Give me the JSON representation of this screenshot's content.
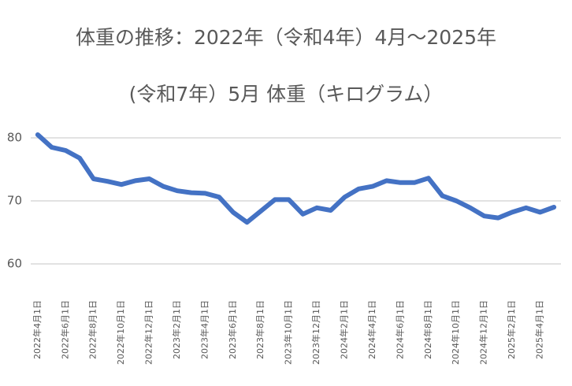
{
  "chart_data": {
    "type": "line",
    "title": "体重の推移：2022年（令和4年）4月～2025年(令和7年）5月 体重（キログラム）",
    "categories": [
      "2022年4月1日",
      null,
      "2022年6月1日",
      null,
      "2022年8月1日",
      null,
      "2022年10月1日",
      null,
      "2022年12月1日",
      null,
      "2023年2月1日",
      null,
      "2023年4月1日",
      null,
      "2023年6月1日",
      null,
      "2023年8月1日",
      null,
      "2023年10月1日",
      null,
      "2023年12月1日",
      null,
      "2024年2月1日",
      null,
      "2024年4月1日",
      null,
      "2024年6月1日",
      null,
      "2024年8月1日",
      null,
      "2024年10月1日",
      null,
      "2024年12月1日",
      null,
      "2025年2月1日",
      null,
      "2025年4月1日",
      null
    ],
    "series": [
      {
        "name": "体重",
        "color": "#4472c4",
        "values": [
          80.5,
          78.5,
          78,
          76.8,
          73.5,
          73.1,
          72.6,
          73.2,
          73.5,
          72.3,
          71.6,
          71.3,
          71.2,
          70.6,
          68.2,
          66.6,
          68.4,
          70.2,
          70.2,
          67.9,
          68.9,
          68.5,
          70.6,
          71.9,
          72.3,
          73.2,
          72.9,
          72.9,
          73.6,
          70.8,
          70,
          68.9,
          67.6,
          67.3,
          68.2,
          68.9,
          68.2,
          69
        ]
      }
    ],
    "ylim": [
      55,
      81.5
    ],
    "yticks": [
      60,
      70,
      80
    ],
    "grid": true
  }
}
